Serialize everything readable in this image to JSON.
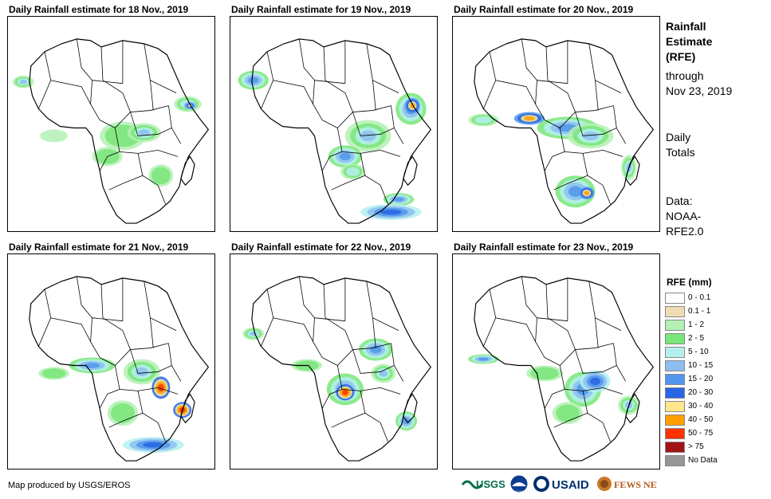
{
  "panels": [
    {
      "title": "Daily Rainfall estimate for 18 Nov., 2019"
    },
    {
      "title": "Daily Rainfall estimate for 19 Nov., 2019"
    },
    {
      "title": "Daily Rainfall estimate for 20 Nov., 2019"
    },
    {
      "title": "Daily Rainfall estimate for 21 Nov., 2019"
    },
    {
      "title": "Daily Rainfall estimate for 22 Nov., 2019"
    },
    {
      "title": "Daily Rainfall estimate for 23 Nov., 2019"
    }
  ],
  "side": {
    "title_line1": "Rainfall",
    "title_line2": "Estimate",
    "title_line3": "(RFE)",
    "through": "through",
    "date": "Nov 23, 2019",
    "daily1": "Daily",
    "daily2": "Totals",
    "data1": "Data:",
    "data2": "NOAA-",
    "data3": "RFE2.0"
  },
  "legend": {
    "title": "RFE (mm)",
    "items": [
      {
        "label": "0 - 0.1",
        "color": "#ffffff"
      },
      {
        "label": "0.1 - 1",
        "color": "#f0dcb4"
      },
      {
        "label": "1 - 2",
        "color": "#b4f0b4"
      },
      {
        "label": "2 - 5",
        "color": "#78e678"
      },
      {
        "label": "5 - 10",
        "color": "#b4f0f0"
      },
      {
        "label": "10 - 15",
        "color": "#8cbef0"
      },
      {
        "label": "15 - 20",
        "color": "#5096eb"
      },
      {
        "label": "20 - 30",
        "color": "#2864e6"
      },
      {
        "label": "30 - 40",
        "color": "#ffe68c"
      },
      {
        "label": "40 - 50",
        "color": "#ffa000"
      },
      {
        "label": "50 - 75",
        "color": "#ff3200"
      },
      {
        "label": "> 75",
        "color": "#a01414"
      },
      {
        "label": "No Data",
        "color": "#969696"
      }
    ]
  },
  "credit": "Map produced by USGS/EROS",
  "logos": [
    "USGS",
    "NOAA",
    "USAID",
    "FEWS NET"
  ]
}
